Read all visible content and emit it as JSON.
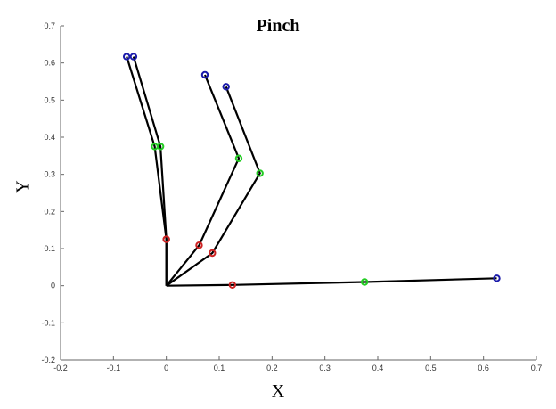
{
  "chart_data": {
    "type": "line",
    "title": "Pinch",
    "xlabel": "X",
    "ylabel": "Y",
    "xlim": [
      -0.2,
      0.7
    ],
    "ylim": [
      -0.2,
      0.7
    ],
    "xticks": [
      "-0.2",
      "-0.1",
      "0",
      "0.1",
      "0.2",
      "0.3",
      "0.4",
      "0.5",
      "0.6",
      "0.7"
    ],
    "yticks": [
      "-0.2",
      "-0.1",
      "0",
      "0.1",
      "0.2",
      "0.3",
      "0.4",
      "0.5",
      "0.6",
      "0.7"
    ],
    "grid": false,
    "line_color": "#000000",
    "marker_colors": {
      "base": "#cc2222",
      "middle": "#22cc22",
      "tip": "#1a1aaa"
    },
    "series": [
      {
        "points": [
          [
            0,
            0
          ],
          [
            0.125,
            0.002
          ],
          [
            0.375,
            0.01
          ],
          [
            0.625,
            0.02
          ]
        ]
      },
      {
        "points": [
          [
            0,
            0
          ],
          [
            0.087,
            0.088
          ],
          [
            0.177,
            0.303
          ],
          [
            0.113,
            0.536
          ]
        ]
      },
      {
        "points": [
          [
            0,
            0
          ],
          [
            0.062,
            0.109
          ],
          [
            0.137,
            0.343
          ],
          [
            0.073,
            0.568
          ]
        ]
      },
      {
        "points": [
          [
            0,
            0
          ],
          [
            0.0,
            0.125
          ],
          [
            -0.011,
            0.375
          ],
          [
            -0.062,
            0.617
          ]
        ]
      },
      {
        "points": [
          [
            0,
            0
          ],
          [
            0.0,
            0.125
          ],
          [
            -0.022,
            0.375
          ],
          [
            -0.075,
            0.617
          ]
        ]
      }
    ]
  }
}
